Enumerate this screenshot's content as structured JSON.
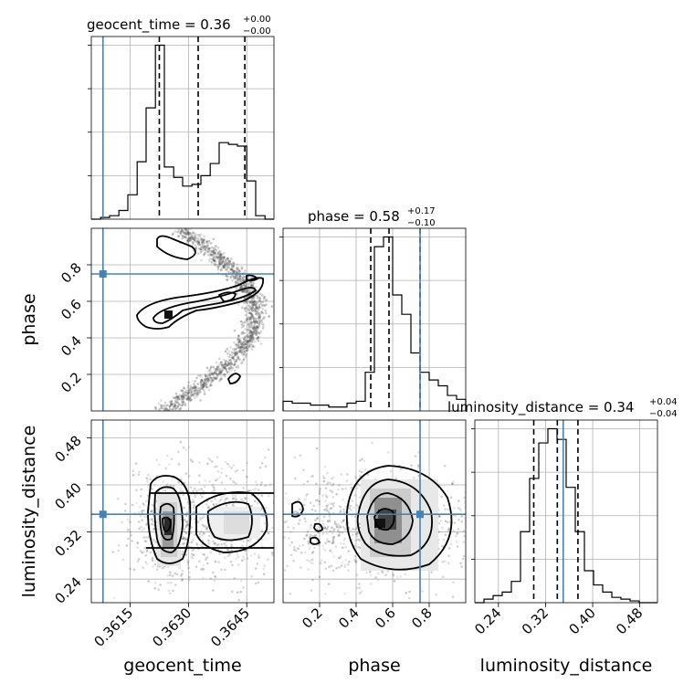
{
  "chart_data": {
    "type": "corner",
    "parameters": [
      "geocent_time",
      "phase",
      "luminosity_distance"
    ],
    "titles": [
      {
        "param": "geocent_time",
        "prefix": "geocent_time = ",
        "median": "0.36",
        "plus": "+0.00",
        "minus": "−0.00"
      },
      {
        "param": "phase",
        "prefix": "phase = ",
        "median": "0.58",
        "plus": "+0.17",
        "minus": "−0.10"
      },
      {
        "param": "luminosity_distance",
        "prefix": "luminosity_distance = ",
        "median": "0.34",
        "plus": "+0.04",
        "minus": "−0.04"
      }
    ],
    "truths": {
      "geocent_time": 0.3608,
      "phase": 0.75,
      "luminosity_distance": 0.35
    },
    "ranges": {
      "geocent_time": [
        0.3605,
        0.3652
      ],
      "phase": [
        0.0,
        1.0
      ],
      "luminosity_distance": [
        0.2,
        0.51
      ]
    },
    "ticks": {
      "geocent_time": [
        {
          "v": 0.3615,
          "label": "0.3615"
        },
        {
          "v": 0.363,
          "label": "0.3630"
        },
        {
          "v": 0.3645,
          "label": "0.3645"
        }
      ],
      "phase": [
        {
          "v": 0.2,
          "label": "0.2"
        },
        {
          "v": 0.4,
          "label": "0.4"
        },
        {
          "v": 0.6,
          "label": "0.6"
        },
        {
          "v": 0.8,
          "label": "0.8"
        }
      ],
      "luminosity_distance": [
        {
          "v": 0.24,
          "label": "0.24"
        },
        {
          "v": 0.32,
          "label": "0.32"
        },
        {
          "v": 0.4,
          "label": "0.40"
        },
        {
          "v": 0.48,
          "label": "0.48"
        }
      ]
    },
    "quantiles": {
      "geocent_time": [
        0.36225,
        0.36325,
        0.36445
      ],
      "phase": [
        0.48,
        0.58,
        0.75
      ],
      "luminosity_distance": [
        0.3,
        0.34,
        0.375
      ]
    },
    "histograms": {
      "geocent_time": {
        "edges": [
          0.3605,
          0.36074,
          0.36097,
          0.36121,
          0.36144,
          0.36168,
          0.36191,
          0.36215,
          0.36238,
          0.36262,
          0.36285,
          0.36309,
          0.36332,
          0.36356,
          0.36379,
          0.36403,
          0.36426,
          0.3645,
          0.36473,
          0.36497,
          0.3652
        ],
        "counts": [
          0,
          1,
          2,
          5,
          14,
          33,
          64,
          100,
          30,
          24,
          19,
          20,
          25,
          32,
          44,
          43,
          42,
          22,
          2,
          0
        ]
      },
      "phase": {
        "edges": [
          0.0,
          0.05,
          0.1,
          0.15,
          0.2,
          0.25,
          0.3,
          0.35,
          0.4,
          0.45,
          0.5,
          0.55,
          0.6,
          0.65,
          0.7,
          0.75,
          0.8,
          0.85,
          0.9,
          0.95,
          1.0
        ],
        "counts": [
          5,
          4,
          4,
          3,
          3,
          2,
          2,
          4,
          5,
          20,
          85,
          90,
          60,
          50,
          30,
          20,
          16,
          13,
          8,
          6
        ]
      },
      "luminosity_distance": {
        "edges": [
          0.2,
          0.2155,
          0.231,
          0.2465,
          0.262,
          0.2775,
          0.293,
          0.3085,
          0.324,
          0.3395,
          0.355,
          0.3705,
          0.386,
          0.4015,
          0.417,
          0.4325,
          0.448,
          0.4635,
          0.479,
          0.4945,
          0.51
        ],
        "counts": [
          0,
          2,
          4,
          6,
          12,
          40,
          70,
          90,
          98,
          92,
          65,
          40,
          18,
          10,
          6,
          3,
          2,
          1,
          0,
          0
        ]
      }
    }
  }
}
